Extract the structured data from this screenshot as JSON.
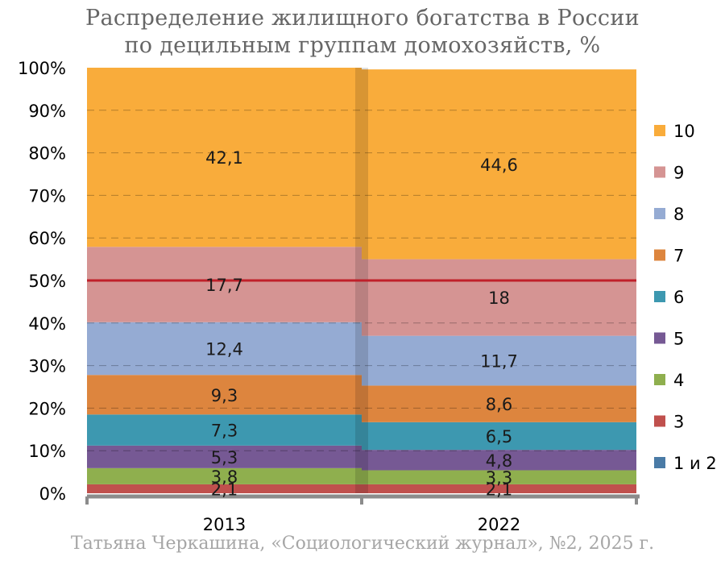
{
  "title_lines": [
    "Распределение жилищного богатства в России",
    "по децильным группам домохозяйств, %"
  ],
  "source": "Татьяна Черкашина, «Социологический журнал», №2, 2025 г.",
  "chart_data": {
    "type": "bar",
    "stacked": true,
    "percent_stacked": true,
    "categories": [
      "2013",
      "2022"
    ],
    "y_ticks": [
      "0%",
      "10%",
      "20%",
      "30%",
      "40%",
      "50%",
      "60%",
      "70%",
      "80%",
      "90%",
      "100%"
    ],
    "ylim": [
      0,
      100
    ],
    "grid": true,
    "reference_line": {
      "value": 50,
      "color": "#c0202a"
    },
    "legend_position": "right",
    "series": [
      {
        "name": "1 и 2",
        "color": "#4a7ba6",
        "values": [
          0.0,
          0.0
        ],
        "labels": [
          "",
          ""
        ]
      },
      {
        "name": "3",
        "color": "#c0504d",
        "values": [
          2.1,
          2.1
        ],
        "labels": [
          "2,1",
          "2,1"
        ]
      },
      {
        "name": "4",
        "color": "#8faf4e",
        "values": [
          3.8,
          3.3
        ],
        "labels": [
          "3,8",
          "3,3"
        ]
      },
      {
        "name": "5",
        "color": "#765994",
        "values": [
          5.3,
          4.8
        ],
        "labels": [
          "5,3",
          "4,8"
        ]
      },
      {
        "name": "6",
        "color": "#3d98b0",
        "values": [
          7.3,
          6.5
        ],
        "labels": [
          "7,3",
          "6,5"
        ]
      },
      {
        "name": "7",
        "color": "#dd853e",
        "values": [
          9.3,
          8.6
        ],
        "labels": [
          "9,3",
          "8,6"
        ]
      },
      {
        "name": "8",
        "color": "#95abd3",
        "values": [
          12.4,
          11.7
        ],
        "labels": [
          "12,4",
          "11,7"
        ]
      },
      {
        "name": "9",
        "color": "#d59493",
        "values": [
          17.7,
          18.0
        ],
        "labels": [
          "17,7",
          "18"
        ]
      },
      {
        "name": "10",
        "color": "#f9ac3b",
        "values": [
          42.1,
          44.6
        ],
        "labels": [
          "42,1",
          "44,6"
        ]
      }
    ]
  }
}
